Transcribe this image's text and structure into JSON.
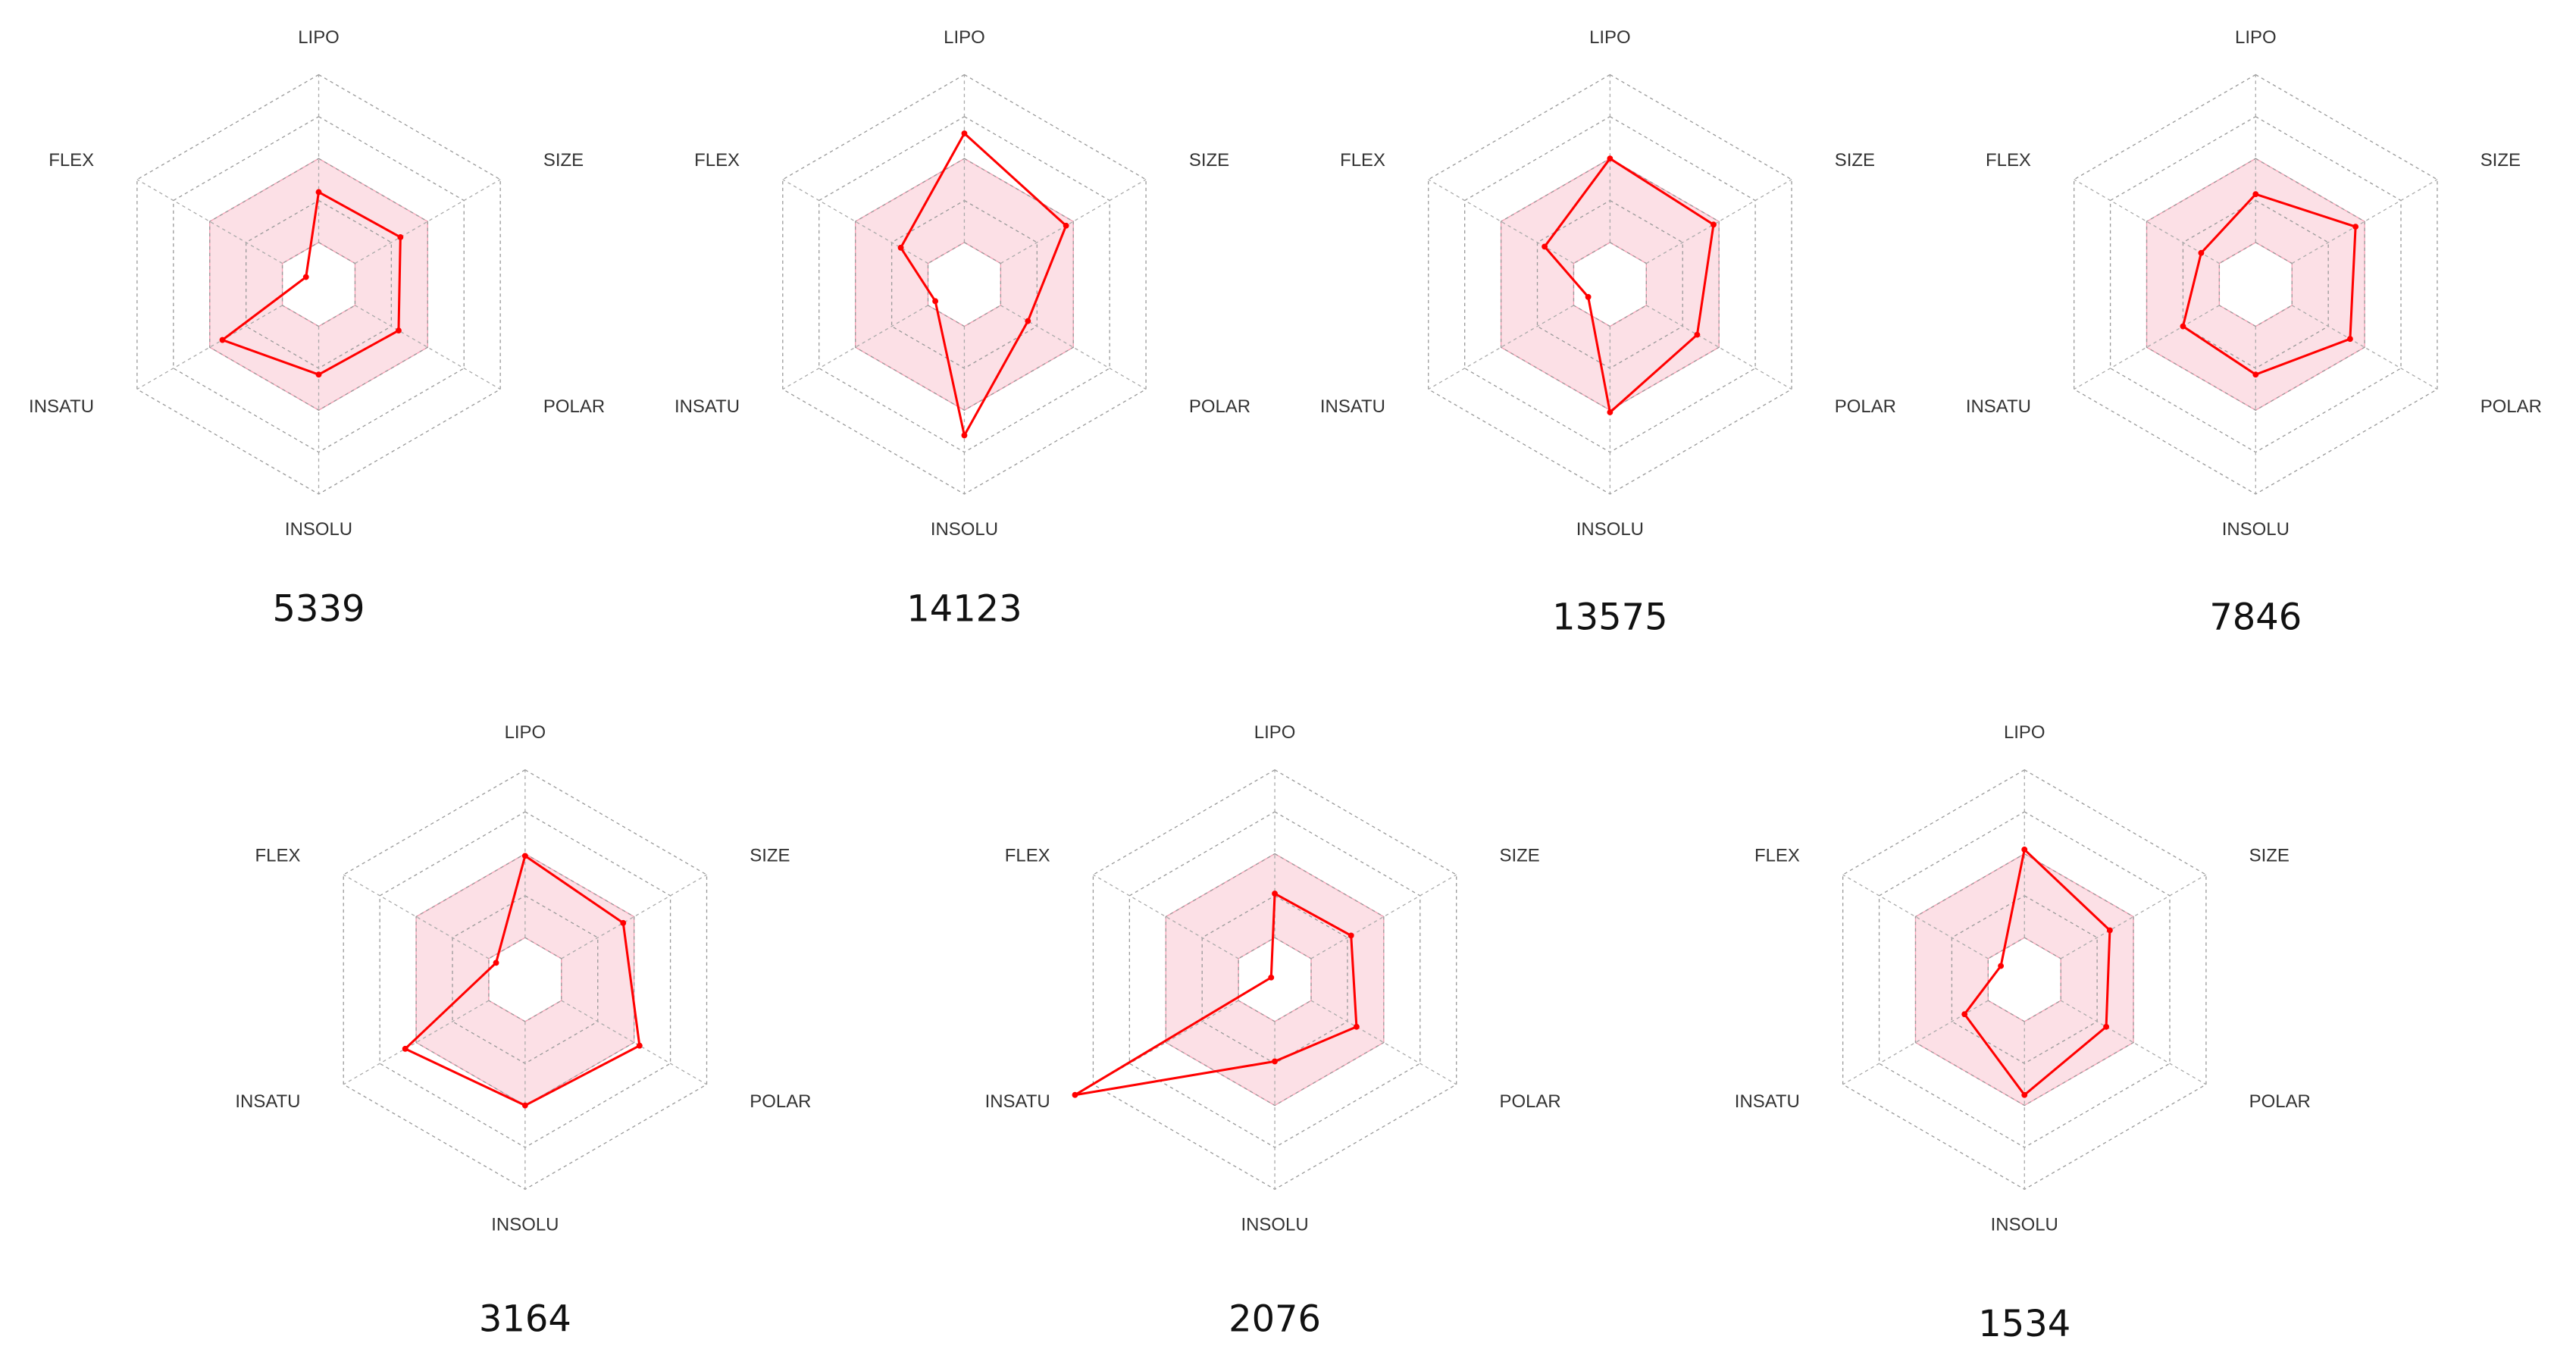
{
  "chart_data": [
    {
      "type": "radar",
      "title": "5339",
      "categories": [
        "LIPO",
        "SIZE",
        "POLAR",
        "INSOLU",
        "INSATU",
        "FLEX"
      ],
      "values": [
        0.44,
        0.45,
        0.44,
        0.43,
        0.53,
        0.07
      ],
      "rlim": [
        0,
        1
      ],
      "rticks": [
        0.2,
        0.4,
        0.6,
        0.8,
        1
      ],
      "optimal_range": [
        0.2,
        0.6
      ],
      "color": "#ff0000",
      "band_color": "#f9c6d2",
      "grid": true
    },
    {
      "type": "radar",
      "title": "14123",
      "categories": [
        "LIPO",
        "SIZE",
        "POLAR",
        "INSOLU",
        "INSATU",
        "FLEX"
      ],
      "values": [
        0.72,
        0.56,
        0.35,
        0.72,
        0.16,
        0.35
      ],
      "rlim": [
        0,
        1
      ],
      "rticks": [
        0.2,
        0.4,
        0.6,
        0.8,
        1
      ],
      "optimal_range": [
        0.2,
        0.6
      ],
      "color": "#ff0000",
      "band_color": "#f9c6d2",
      "grid": true
    },
    {
      "type": "radar",
      "title": "13575",
      "categories": [
        "LIPO",
        "SIZE",
        "POLAR",
        "INSOLU",
        "INSATU",
        "FLEX"
      ],
      "values": [
        0.6,
        0.57,
        0.48,
        0.61,
        0.12,
        0.36
      ],
      "rlim": [
        0,
        1
      ],
      "rticks": [
        0.2,
        0.4,
        0.6,
        0.8,
        1
      ],
      "optimal_range": [
        0.2,
        0.6
      ],
      "color": "#ff0000",
      "band_color": "#f9c6d2",
      "grid": true
    },
    {
      "type": "radar",
      "title": "7846",
      "categories": [
        "LIPO",
        "SIZE",
        "POLAR",
        "INSOLU",
        "INSATU",
        "FLEX"
      ],
      "values": [
        0.43,
        0.55,
        0.52,
        0.43,
        0.4,
        0.3
      ],
      "rlim": [
        0,
        1
      ],
      "rticks": [
        0.2,
        0.4,
        0.6,
        0.8,
        1
      ],
      "optimal_range": [
        0.2,
        0.6
      ],
      "color": "#ff0000",
      "band_color": "#f9c6d2",
      "grid": true
    },
    {
      "type": "radar",
      "title": "3164",
      "categories": [
        "LIPO",
        "SIZE",
        "POLAR",
        "INSOLU",
        "INSATU",
        "FLEX"
      ],
      "values": [
        0.59,
        0.54,
        0.63,
        0.6,
        0.66,
        0.16
      ],
      "rlim": [
        0,
        1
      ],
      "rticks": [
        0.2,
        0.4,
        0.6,
        0.8,
        1
      ],
      "optimal_range": [
        0.2,
        0.6
      ],
      "color": "#ff0000",
      "band_color": "#f9c6d2",
      "grid": true
    },
    {
      "type": "radar",
      "title": "2076",
      "categories": [
        "LIPO",
        "SIZE",
        "POLAR",
        "INSOLU",
        "INSATU",
        "FLEX"
      ],
      "values": [
        0.41,
        0.42,
        0.45,
        0.39,
        1.1,
        0.02
      ],
      "rlim": [
        0,
        1
      ],
      "rticks": [
        0.2,
        0.4,
        0.6,
        0.8,
        1
      ],
      "optimal_range": [
        0.2,
        0.6
      ],
      "color": "#ff0000",
      "band_color": "#f9c6d2",
      "grid": true
    },
    {
      "type": "radar",
      "title": "1534",
      "categories": [
        "LIPO",
        "SIZE",
        "POLAR",
        "INSOLU",
        "INSATU",
        "FLEX"
      ],
      "values": [
        0.62,
        0.47,
        0.45,
        0.55,
        0.33,
        0.13
      ],
      "rlim": [
        0,
        1
      ],
      "rticks": [
        0.2,
        0.4,
        0.6,
        0.8,
        1
      ],
      "optimal_range": [
        0.2,
        0.6
      ],
      "color": "#ff0000",
      "band_color": "#f9c6d2",
      "grid": true
    }
  ]
}
